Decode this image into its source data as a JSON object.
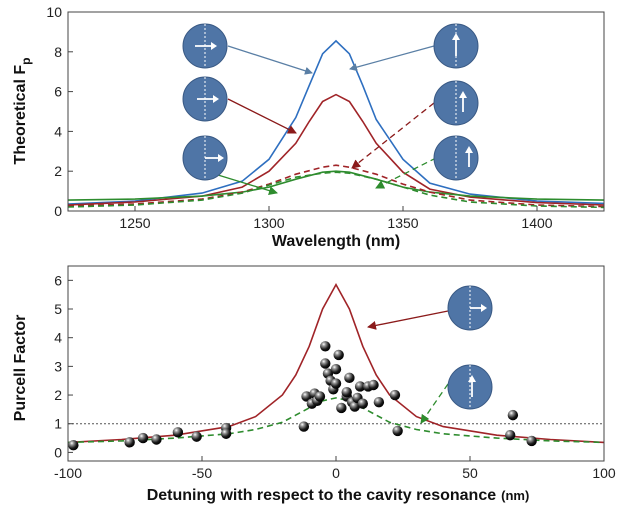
{
  "chart_data": [
    {
      "type": "line",
      "title": "",
      "xlabel": "Wavelength (nm)",
      "ylabel_main": "Theoretical F",
      "ylabel_sub": "p",
      "xlim": [
        1225,
        1425
      ],
      "ylim": [
        0,
        10
      ],
      "xticks": [
        1250,
        1300,
        1350,
        1400
      ],
      "yticks": [
        0,
        2,
        4,
        6,
        8,
        10
      ],
      "series": [
        {
          "color": "#2e6fc0",
          "dash": "solid",
          "x": [
            1225,
            1250,
            1275,
            1290,
            1300,
            1310,
            1315,
            1320,
            1325,
            1330,
            1335,
            1340,
            1350,
            1360,
            1375,
            1400,
            1425
          ],
          "y": [
            0.35,
            0.5,
            0.9,
            1.5,
            2.6,
            4.7,
            6.3,
            7.9,
            8.55,
            7.9,
            6.3,
            4.6,
            2.6,
            1.4,
            0.85,
            0.5,
            0.38
          ]
        },
        {
          "color": "#a02428",
          "dash": "solid",
          "x": [
            1225,
            1250,
            1275,
            1290,
            1300,
            1310,
            1315,
            1320,
            1325,
            1330,
            1335,
            1340,
            1350,
            1360,
            1375,
            1400,
            1425
          ],
          "y": [
            0.3,
            0.45,
            0.75,
            1.2,
            2.0,
            3.4,
            4.5,
            5.5,
            5.85,
            5.5,
            4.5,
            3.4,
            1.95,
            1.1,
            0.7,
            0.42,
            0.3
          ]
        },
        {
          "color": "#2e8c2e",
          "dash": "solid",
          "x": [
            1225,
            1250,
            1275,
            1290,
            1300,
            1310,
            1320,
            1325,
            1330,
            1340,
            1350,
            1360,
            1375,
            1400,
            1425
          ],
          "y": [
            0.55,
            0.6,
            0.75,
            0.95,
            1.2,
            1.6,
            1.95,
            2.0,
            1.95,
            1.6,
            1.2,
            0.95,
            0.75,
            0.6,
            0.55
          ]
        },
        {
          "color": "#a02428",
          "dash": "dashed",
          "x": [
            1225,
            1250,
            1275,
            1290,
            1300,
            1310,
            1320,
            1325,
            1330,
            1340,
            1350,
            1360,
            1375,
            1400,
            1425
          ],
          "y": [
            0.25,
            0.35,
            0.6,
            0.95,
            1.35,
            1.85,
            2.2,
            2.3,
            2.2,
            1.85,
            1.35,
            0.95,
            0.55,
            0.3,
            0.22
          ]
        },
        {
          "color": "#2e8c2e",
          "dash": "dashed",
          "x": [
            1225,
            1250,
            1275,
            1290,
            1300,
            1310,
            1320,
            1325,
            1330,
            1340,
            1350,
            1360,
            1375,
            1400,
            1425
          ],
          "y": [
            0.2,
            0.3,
            0.55,
            0.9,
            1.3,
            1.7,
            1.9,
            1.95,
            1.9,
            1.6,
            1.2,
            0.8,
            0.45,
            0.25,
            0.18
          ]
        }
      ]
    },
    {
      "type": "scatter",
      "title": "",
      "xlabel": "Detuning with respect to the cavity resonance",
      "xlabel_unit": "(nm)",
      "ylabel": "Purcell Factor",
      "xlim": [
        -100,
        100
      ],
      "ylim": [
        -0.3,
        6.5
      ],
      "xticks": [
        -100,
        -50,
        0,
        50,
        100
      ],
      "yticks": [
        0,
        1,
        2,
        3,
        4,
        5,
        6
      ],
      "reference_line_y": 1,
      "series": [
        {
          "color": "#a02428",
          "dash": "solid",
          "x": [
            -100,
            -80,
            -60,
            -40,
            -30,
            -20,
            -15,
            -10,
            -5,
            0,
            5,
            10,
            15,
            20,
            30,
            40,
            60,
            80,
            100
          ],
          "y": [
            0.35,
            0.45,
            0.6,
            0.9,
            1.25,
            2.0,
            2.7,
            3.7,
            5.0,
            5.85,
            5.0,
            3.7,
            2.7,
            2.0,
            1.25,
            0.9,
            0.6,
            0.45,
            0.35
          ]
        },
        {
          "color": "#2e8c2e",
          "dash": "dashed",
          "x": [
            -100,
            -80,
            -60,
            -40,
            -30,
            -20,
            -15,
            -10,
            -5,
            0,
            5,
            10,
            15,
            20,
            30,
            40,
            60,
            80,
            100
          ],
          "y": [
            0.35,
            0.4,
            0.5,
            0.65,
            0.8,
            1.05,
            1.3,
            1.55,
            1.8,
            1.9,
            1.8,
            1.55,
            1.3,
            1.05,
            0.8,
            0.65,
            0.5,
            0.4,
            0.35
          ]
        }
      ],
      "points": {
        "x": [
          -98,
          -77,
          -72,
          -67,
          -59,
          -52,
          -41,
          -41,
          -12,
          -11,
          -9,
          -8,
          -7,
          -6,
          -4,
          -4,
          -3,
          -2,
          -1,
          0,
          0,
          1,
          2,
          4,
          4,
          5,
          6,
          7,
          8,
          9,
          10,
          12,
          14,
          16,
          22,
          23,
          65,
          66,
          73
        ],
        "y": [
          0.25,
          0.35,
          0.5,
          0.45,
          0.7,
          0.55,
          0.85,
          0.65,
          0.9,
          1.95,
          1.7,
          2.05,
          1.8,
          1.95,
          3.7,
          3.1,
          2.75,
          2.5,
          2.2,
          2.9,
          2.4,
          3.4,
          1.55,
          1.95,
          2.1,
          2.6,
          1.75,
          1.6,
          1.9,
          2.3,
          1.7,
          2.3,
          2.35,
          1.75,
          2.0,
          0.75,
          0.6,
          1.3,
          0.4
        ]
      }
    }
  ]
}
